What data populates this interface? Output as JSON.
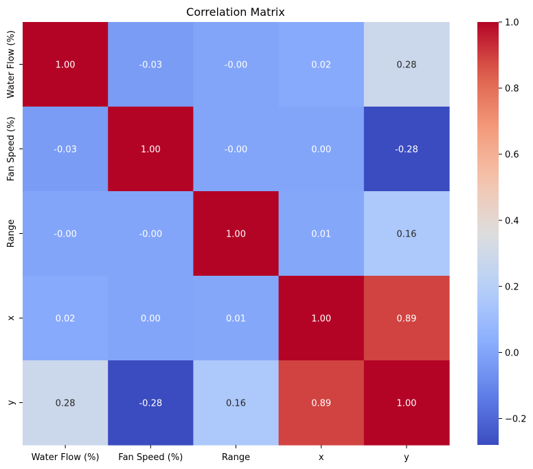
{
  "chart_data": {
    "type": "heatmap",
    "title": "Correlation Matrix",
    "xlabel": "",
    "ylabel": "",
    "row_labels": [
      "Water Flow (%)",
      "Fan Speed (%)",
      "Range",
      "x",
      "y"
    ],
    "col_labels": [
      "Water Flow (%)",
      "Fan Speed (%)",
      "Range",
      "x",
      "y"
    ],
    "values": [
      [
        1.0,
        -0.03,
        -0.0,
        0.02,
        0.28
      ],
      [
        -0.03,
        1.0,
        -0.0,
        0.0,
        -0.28
      ],
      [
        -0.0,
        -0.0,
        1.0,
        0.01,
        0.16
      ],
      [
        0.02,
        0.0,
        0.01,
        1.0,
        0.89
      ],
      [
        0.28,
        -0.28,
        0.16,
        0.89,
        1.0
      ]
    ],
    "annotations": [
      [
        "1.00",
        "-0.03",
        "-0.00",
        "0.02",
        "0.28"
      ],
      [
        "-0.03",
        "1.00",
        "-0.00",
        "0.00",
        "-0.28"
      ],
      [
        "-0.00",
        "-0.00",
        "1.00",
        "0.01",
        "0.16"
      ],
      [
        "0.02",
        "0.00",
        "0.01",
        "1.00",
        "0.89"
      ],
      [
        "0.28",
        "-0.28",
        "0.16",
        "0.89",
        "1.00"
      ]
    ],
    "colormap": "coolwarm",
    "colorbar": {
      "range": [
        -0.28,
        1.0
      ],
      "ticks": [
        -0.2,
        0.0,
        0.2,
        0.4,
        0.6,
        0.8,
        1.0
      ],
      "tick_labels": [
        "−0.2",
        "0.0",
        "0.2",
        "0.4",
        "0.6",
        "0.8",
        "1.0"
      ]
    }
  }
}
